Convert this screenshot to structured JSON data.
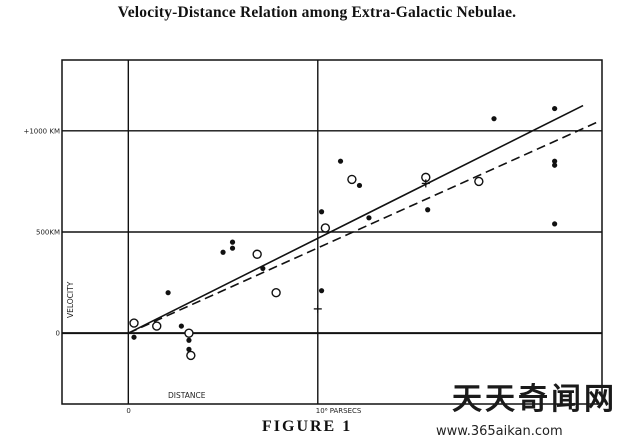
{
  "chart_data": {
    "type": "scatter",
    "title": "Velocity-Distance Relation among Extra-Galactic Nebulae.",
    "caption": "FIGURE 1",
    "xlabel": "DISTANCE",
    "ylabel": "VELOCITY",
    "xlim": [
      -0.35,
      2.5
    ],
    "ylim": [
      -350,
      1350
    ],
    "x_ticks": [
      {
        "value": 0,
        "label": "0"
      },
      {
        "value": 1,
        "label": "10⁶ PARSECS"
      }
    ],
    "y_ticks": [
      {
        "value": 0,
        "label": "0"
      },
      {
        "value": 500,
        "label": "500KM"
      },
      {
        "value": 1000,
        "label": "+1000 KM"
      }
    ],
    "grid": true,
    "series": [
      {
        "marker": "filled-dot",
        "points": [
          {
            "x": 0.03,
            "y": -20
          },
          {
            "x": 0.21,
            "y": 200
          },
          {
            "x": 0.28,
            "y": 35
          },
          {
            "x": 0.32,
            "y": -35
          },
          {
            "x": 0.32,
            "y": -80
          },
          {
            "x": 0.5,
            "y": 400
          },
          {
            "x": 0.55,
            "y": 420
          },
          {
            "x": 0.55,
            "y": 450
          },
          {
            "x": 0.71,
            "y": 320
          },
          {
            "x": 1.02,
            "y": 600
          },
          {
            "x": 1.02,
            "y": 210
          },
          {
            "x": 1.12,
            "y": 850
          },
          {
            "x": 1.22,
            "y": 730
          },
          {
            "x": 1.27,
            "y": 570
          },
          {
            "x": 1.58,
            "y": 610
          },
          {
            "x": 1.93,
            "y": 1060
          },
          {
            "x": 2.25,
            "y": 1110
          },
          {
            "x": 2.25,
            "y": 850
          },
          {
            "x": 2.25,
            "y": 830
          },
          {
            "x": 2.25,
            "y": 540
          }
        ]
      },
      {
        "marker": "open-circle",
        "points": [
          {
            "x": 0.03,
            "y": 50
          },
          {
            "x": 0.15,
            "y": 35
          },
          {
            "x": 0.32,
            "y": 0
          },
          {
            "x": 0.33,
            "y": -110
          },
          {
            "x": 0.68,
            "y": 390
          },
          {
            "x": 0.78,
            "y": 200
          },
          {
            "x": 1.04,
            "y": 520
          },
          {
            "x": 1.18,
            "y": 760
          },
          {
            "x": 1.57,
            "y": 770
          },
          {
            "x": 1.85,
            "y": 750
          }
        ]
      }
    ],
    "lines": [
      {
        "style": "solid",
        "from": [
          0,
          0
        ],
        "to": [
          2.4,
          1125
        ]
      },
      {
        "style": "dashed",
        "from": [
          0,
          0
        ],
        "to": [
          2.48,
          1045
        ]
      }
    ],
    "annotations": [
      {
        "type": "cross",
        "x": 1.57,
        "y": 740
      },
      {
        "type": "cross",
        "x": 1.0,
        "y": 120
      }
    ]
  },
  "watermark": {
    "text": "天天奇闻网",
    "url": "www.365aikan.com"
  }
}
